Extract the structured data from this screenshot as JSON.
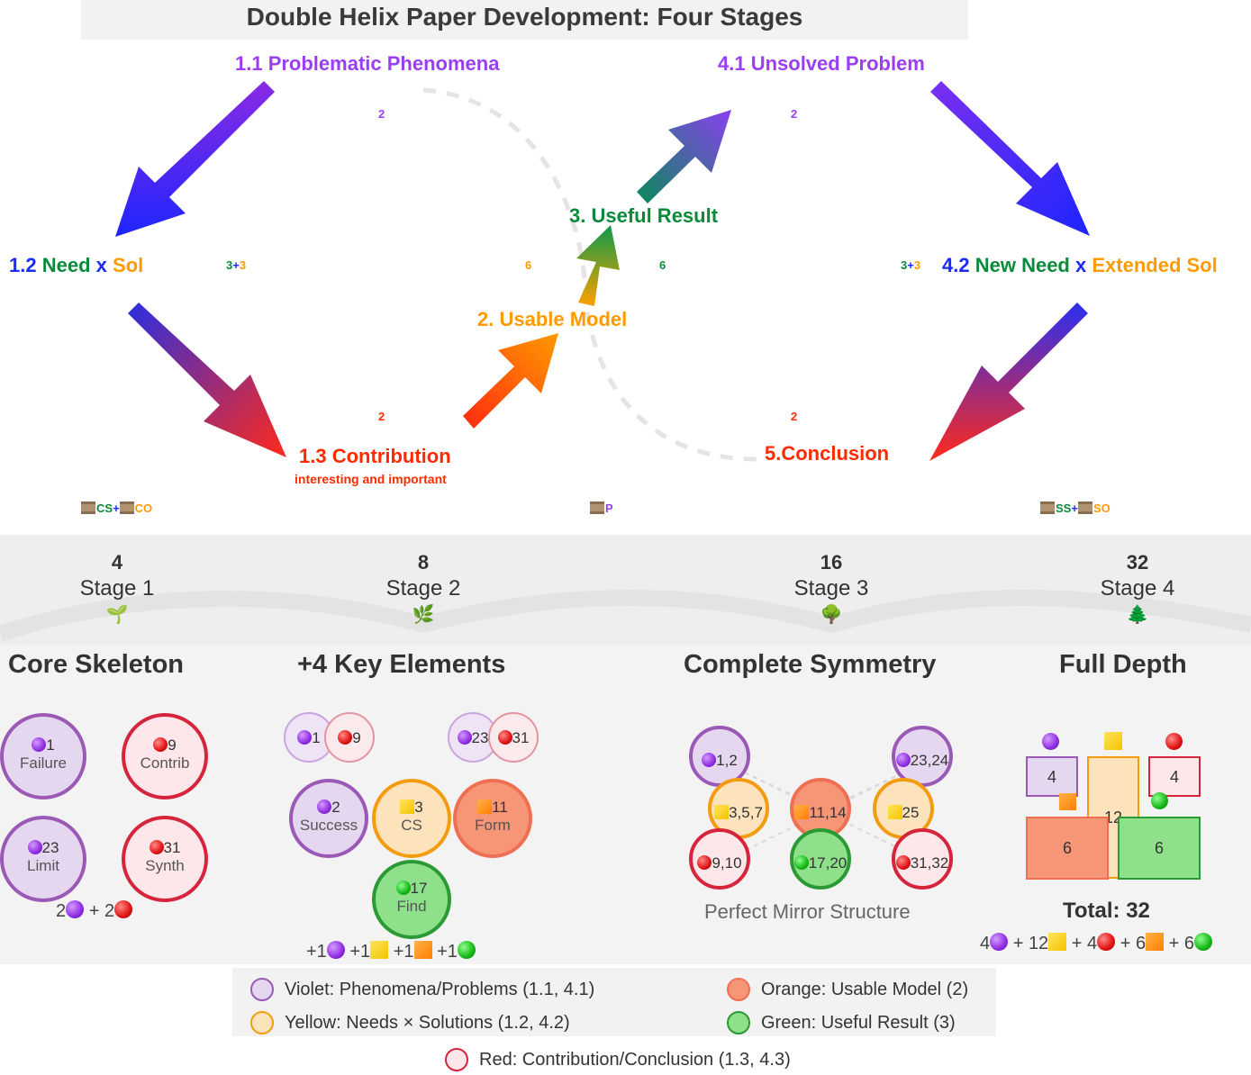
{
  "title": "Double Helix Paper Development: Four Stages",
  "colors": {
    "violet": "#8e2de2",
    "blue": "#1c2bff",
    "green": "#0a8a3a",
    "orange": "#ff9a00",
    "red": "#ff2a00",
    "teal": "#1a8a6a"
  },
  "nodes": {
    "n11": "1.1 Problematic Phenomena",
    "n12_num": "1.2",
    "n12_need": "Need",
    "n12_x": "x",
    "n12_sol": "Sol",
    "n13": "1.3 Contribution",
    "n13_sub": "interesting and important",
    "n2": "2. Usable Model",
    "n3": "3. Useful Result",
    "n41": "4.1 Unsolved Problem",
    "n42_num": "4.2",
    "n42_need": "New Need",
    "n42_x": "x",
    "n42_sol": "Extended Sol",
    "n5": "5.Conclusion"
  },
  "counts": {
    "c11": "2",
    "c12_a": "3",
    "c12_plus": "+",
    "c12_b": "3",
    "c13": "2",
    "c2": "6",
    "c3": "6",
    "c41": "2",
    "c42_a": "3",
    "c42_plus": "+",
    "c42_b": "3",
    "c5": "2"
  },
  "files": {
    "left_a": "CS",
    "left_plus": "+",
    "left_b": "CO",
    "mid": "P",
    "right_a": "SS",
    "right_plus": "+",
    "right_b": "SO"
  },
  "stages": [
    {
      "num": "4",
      "name": "Stage 1",
      "icon": "🌱",
      "heading": "Core Skeleton"
    },
    {
      "num": "8",
      "name": "Stage 2",
      "icon": "🌿",
      "heading": "+4 Key Elements"
    },
    {
      "num": "16",
      "name": "Stage 3",
      "icon": "🌳",
      "heading": "Complete Symmetry"
    },
    {
      "num": "32",
      "name": "Stage 4",
      "icon": "🌲",
      "heading": "Full Depth"
    }
  ],
  "stage1": {
    "c1_num": "1",
    "c1_lbl": "Failure",
    "c9_num": "9",
    "c9_lbl": "Contrib",
    "c23_num": "23",
    "c23_lbl": "Limit",
    "c31_num": "31",
    "c31_lbl": "Synth",
    "sum_a": "2",
    "sum_plus": "+",
    "sum_b": "2"
  },
  "stage2": {
    "f1": "1",
    "f9": "9",
    "f23": "23",
    "f31": "31",
    "c2_num": "2",
    "c2_lbl": "Success",
    "c3_num": "3",
    "c3_lbl": "CS",
    "c11_num": "11",
    "c11_lbl": "Form",
    "c17_num": "17",
    "c17_lbl": "Find",
    "sum_prefix": "+1",
    "sum_mid": "+1"
  },
  "stage3": {
    "a": "1,2",
    "b": "23,24",
    "c": "3,5,7",
    "d": "11,14",
    "e": "25",
    "f": "9,10",
    "g": "17,20",
    "h": "31,32",
    "caption": "Perfect Mirror Structure"
  },
  "stage4": {
    "r_v": "4",
    "r_y": "12",
    "r_r": "4",
    "r_o": "6",
    "r_g": "6",
    "total": "Total: 32",
    "sum": {
      "v": "4",
      "y": "12",
      "r": "4",
      "o": "6",
      "g": "6",
      "plus": "+"
    }
  },
  "legend": {
    "violet": "Violet: Phenomena/Problems (1.1, 4.1)",
    "yellow": "Yellow: Needs × Solutions (1.2, 4.2)",
    "orange": "Orange: Usable Model (2)",
    "green": "Green: Useful Result (3)",
    "red": "Red: Contribution/Conclusion (1.3, 4.3)"
  }
}
